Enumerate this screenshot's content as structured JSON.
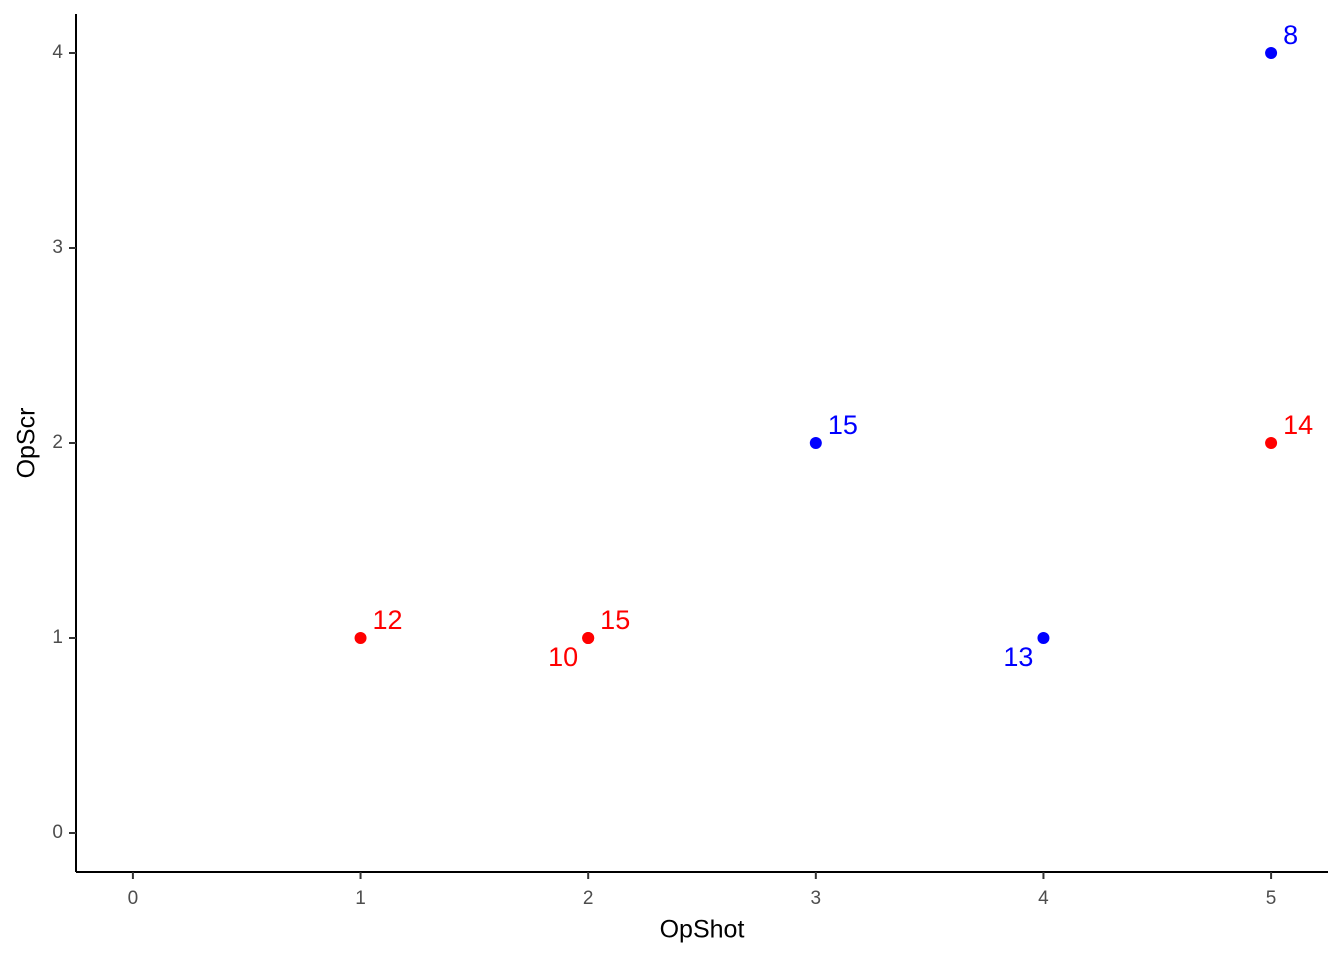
{
  "chart_data": {
    "type": "scatter",
    "x_label": "OpShot",
    "y_label": "OpScr",
    "xlim": [
      -0.25,
      5.25
    ],
    "ylim": [
      -0.2,
      4.2
    ],
    "xticks": [
      0,
      1,
      2,
      3,
      4,
      5
    ],
    "yticks": [
      0,
      1,
      2,
      3,
      4
    ],
    "grid": false,
    "series": [
      {
        "color": "#ff0000",
        "x": [
          1,
          2,
          2,
          5
        ],
        "y": [
          1,
          1,
          1,
          2
        ],
        "labels": [
          "12",
          "15",
          "10",
          "14"
        ]
      },
      {
        "color": "#0000ff",
        "x": [
          3,
          4,
          5
        ],
        "y": [
          2,
          1,
          4
        ],
        "labels": [
          "15",
          "13",
          "8"
        ]
      }
    ]
  }
}
